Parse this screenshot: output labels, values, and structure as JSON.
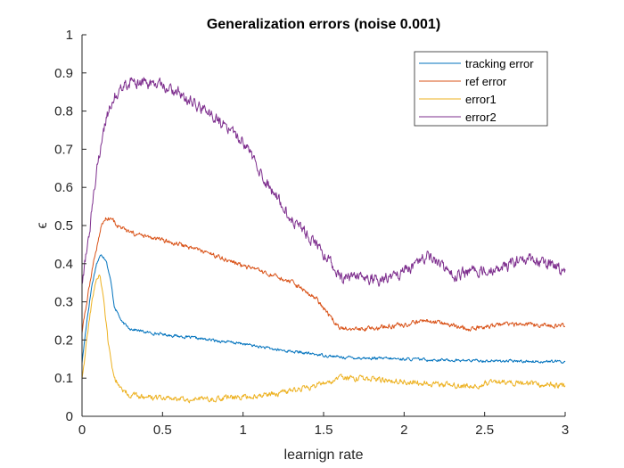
{
  "chart_data": {
    "type": "line",
    "title": "Generalization errors (noise 0.001)",
    "xlabel": "learnign rate",
    "ylabel": "ϵ",
    "xlim": [
      0,
      3
    ],
    "ylim": [
      0,
      1
    ],
    "xticks": [
      "0",
      "0.5",
      "1",
      "1.5",
      "2",
      "2.5",
      "3"
    ],
    "yticks": [
      "0",
      "0.1",
      "0.2",
      "0.3",
      "0.4",
      "0.5",
      "0.6",
      "0.7",
      "0.8",
      "0.9",
      "1"
    ],
    "grid": false,
    "legend_position": "top-right",
    "series": [
      {
        "name": "tracking error",
        "color": "#0072BD",
        "noise": 0.003,
        "x": [
          0,
          0.03,
          0.06,
          0.09,
          0.12,
          0.15,
          0.18,
          0.2,
          0.25,
          0.3,
          0.4,
          0.5,
          0.7,
          1.0,
          1.2,
          1.4,
          1.5,
          1.6,
          1.8,
          2.0,
          2.2,
          2.4,
          2.6,
          2.8,
          3.0
        ],
        "y": [
          0.14,
          0.25,
          0.34,
          0.4,
          0.425,
          0.41,
          0.35,
          0.29,
          0.245,
          0.23,
          0.22,
          0.215,
          0.205,
          0.19,
          0.175,
          0.165,
          0.16,
          0.155,
          0.152,
          0.15,
          0.148,
          0.146,
          0.145,
          0.144,
          0.143
        ]
      },
      {
        "name": "ref error",
        "color": "#D95319",
        "noise": 0.005,
        "x": [
          0,
          0.03,
          0.06,
          0.09,
          0.12,
          0.15,
          0.18,
          0.22,
          0.3,
          0.4,
          0.5,
          0.7,
          0.9,
          1.1,
          1.3,
          1.45,
          1.6,
          1.8,
          2.0,
          2.15,
          2.4,
          2.6,
          2.8,
          3.0
        ],
        "y": [
          0.22,
          0.3,
          0.38,
          0.44,
          0.5,
          0.52,
          0.52,
          0.5,
          0.48,
          0.47,
          0.46,
          0.44,
          0.41,
          0.38,
          0.35,
          0.31,
          0.23,
          0.23,
          0.24,
          0.25,
          0.23,
          0.24,
          0.24,
          0.235
        ]
      },
      {
        "name": "error1",
        "color": "#EDB120",
        "noise": 0.006,
        "x": [
          0,
          0.03,
          0.06,
          0.09,
          0.11,
          0.13,
          0.16,
          0.2,
          0.25,
          0.3,
          0.4,
          0.6,
          0.8,
          1.0,
          1.2,
          1.4,
          1.6,
          1.8,
          2.0,
          2.2,
          2.4,
          2.6,
          2.8,
          3.0
        ],
        "y": [
          0.1,
          0.2,
          0.3,
          0.36,
          0.37,
          0.32,
          0.2,
          0.1,
          0.07,
          0.055,
          0.05,
          0.045,
          0.045,
          0.05,
          0.06,
          0.075,
          0.1,
          0.1,
          0.09,
          0.085,
          0.08,
          0.09,
          0.085,
          0.08
        ]
      },
      {
        "name": "error2",
        "color": "#7E2F8E",
        "noise": 0.012,
        "x": [
          0,
          0.05,
          0.1,
          0.15,
          0.2,
          0.25,
          0.3,
          0.35,
          0.45,
          0.6,
          0.8,
          1.0,
          1.15,
          1.3,
          1.45,
          1.55,
          1.6,
          1.7,
          1.85,
          2.0,
          2.15,
          2.3,
          2.45,
          2.6,
          2.75,
          2.9,
          3.0
        ],
        "y": [
          0.35,
          0.5,
          0.67,
          0.78,
          0.84,
          0.865,
          0.875,
          0.875,
          0.87,
          0.85,
          0.79,
          0.72,
          0.61,
          0.52,
          0.45,
          0.4,
          0.36,
          0.36,
          0.36,
          0.38,
          0.42,
          0.37,
          0.38,
          0.39,
          0.41,
          0.4,
          0.38
        ]
      }
    ]
  }
}
